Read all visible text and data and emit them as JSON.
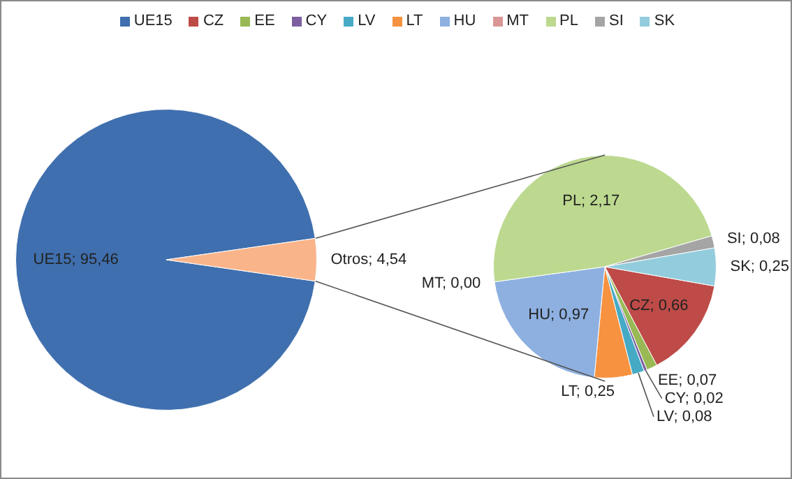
{
  "chart_data": [
    {
      "type": "pie",
      "categories": [
        "UE15",
        null
      ],
      "values": [
        95.46,
        4.54
      ],
      "value_labels": [
        "UE15; 95,46",
        "Otros; 4,54"
      ],
      "colors": [
        "#3f6fae",
        "#f9b48a"
      ],
      "legend": "top"
    },
    {
      "type": "pie",
      "categories": [
        "CZ",
        "EE",
        "CY",
        "LV",
        "LT",
        "HU",
        "MT",
        "PL",
        "SI",
        "SK"
      ],
      "values": [
        0.66,
        0.07,
        0.02,
        0.08,
        0.25,
        0.97,
        0.0,
        2.17,
        0.08,
        0.25
      ],
      "value_labels": [
        "CZ; 0,66",
        "EE; 0,07",
        "CY; 0,02",
        "LV; 0,08",
        "LT; 0,25",
        "HU; 0,97",
        "MT; 0,00",
        "PL; 2,17",
        "SI; 0,08",
        "SK; 0,25"
      ],
      "colors": [
        "#be4b48",
        "#98b954",
        "#7d5fa0",
        "#46aac5",
        "#f69240",
        "#8db0e0",
        "#d99694",
        "#bcd98f",
        "#a5a5a5",
        "#93cddd"
      ],
      "legend": "top"
    }
  ]
}
